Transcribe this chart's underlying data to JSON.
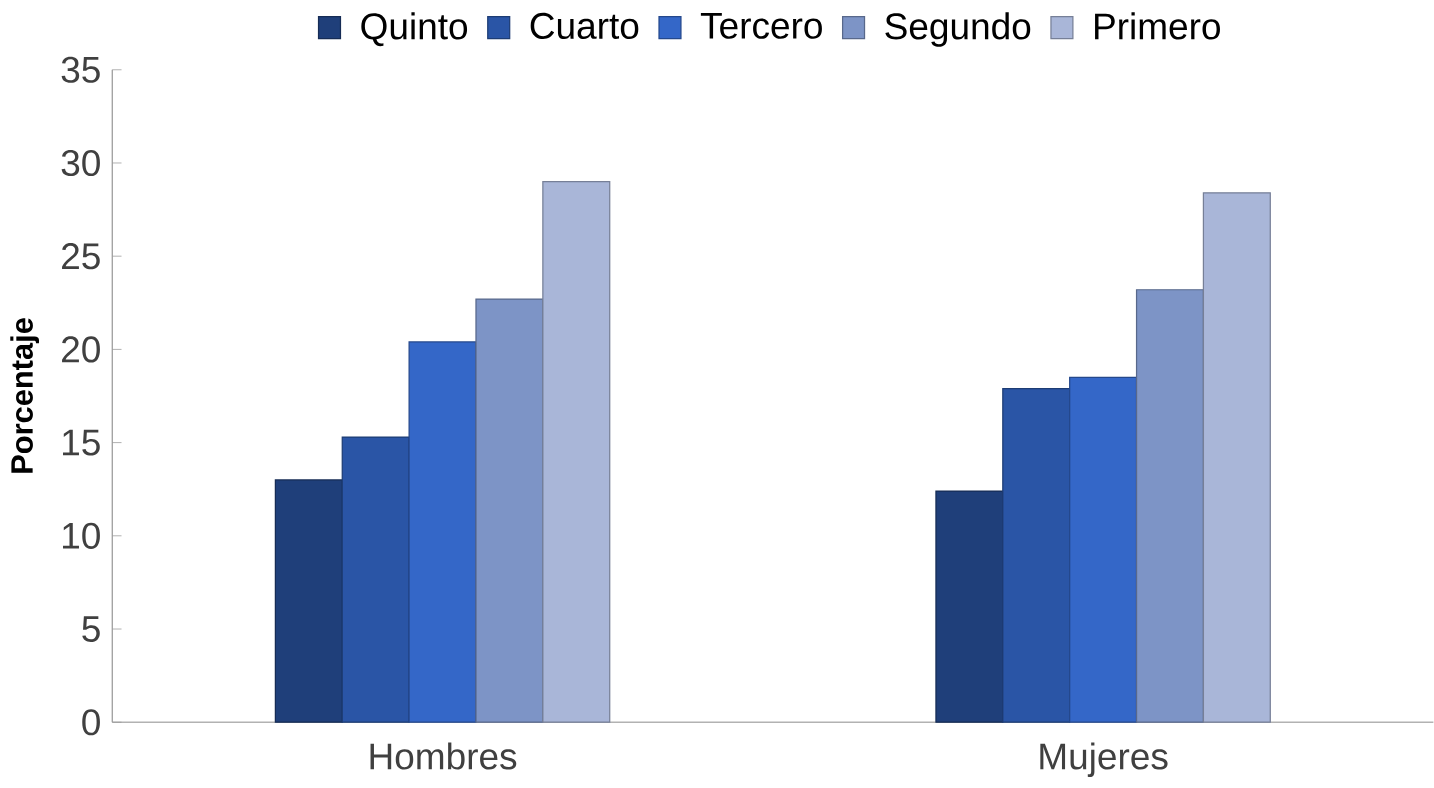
{
  "chart_data": {
    "type": "bar",
    "ylabel": "Porcentaje",
    "categories": [
      "Hombres",
      "Mujeres"
    ],
    "series": [
      {
        "name": "Quinto",
        "color": "#1f3f7a",
        "values": [
          13.0,
          12.4
        ]
      },
      {
        "name": "Cuarto",
        "color": "#2a55a6",
        "values": [
          15.3,
          17.9
        ]
      },
      {
        "name": "Tercero",
        "color": "#3467c8",
        "values": [
          20.4,
          18.5
        ]
      },
      {
        "name": "Segundo",
        "color": "#7d94c6",
        "values": [
          22.7,
          23.2
        ]
      },
      {
        "name": "Primero",
        "color": "#a9b6d8",
        "values": [
          29.0,
          28.4
        ]
      }
    ],
    "ylim": [
      0,
      35
    ],
    "yticks": [
      0,
      5,
      10,
      15,
      20,
      25,
      30,
      35
    ],
    "legend": "top",
    "grid": false
  }
}
